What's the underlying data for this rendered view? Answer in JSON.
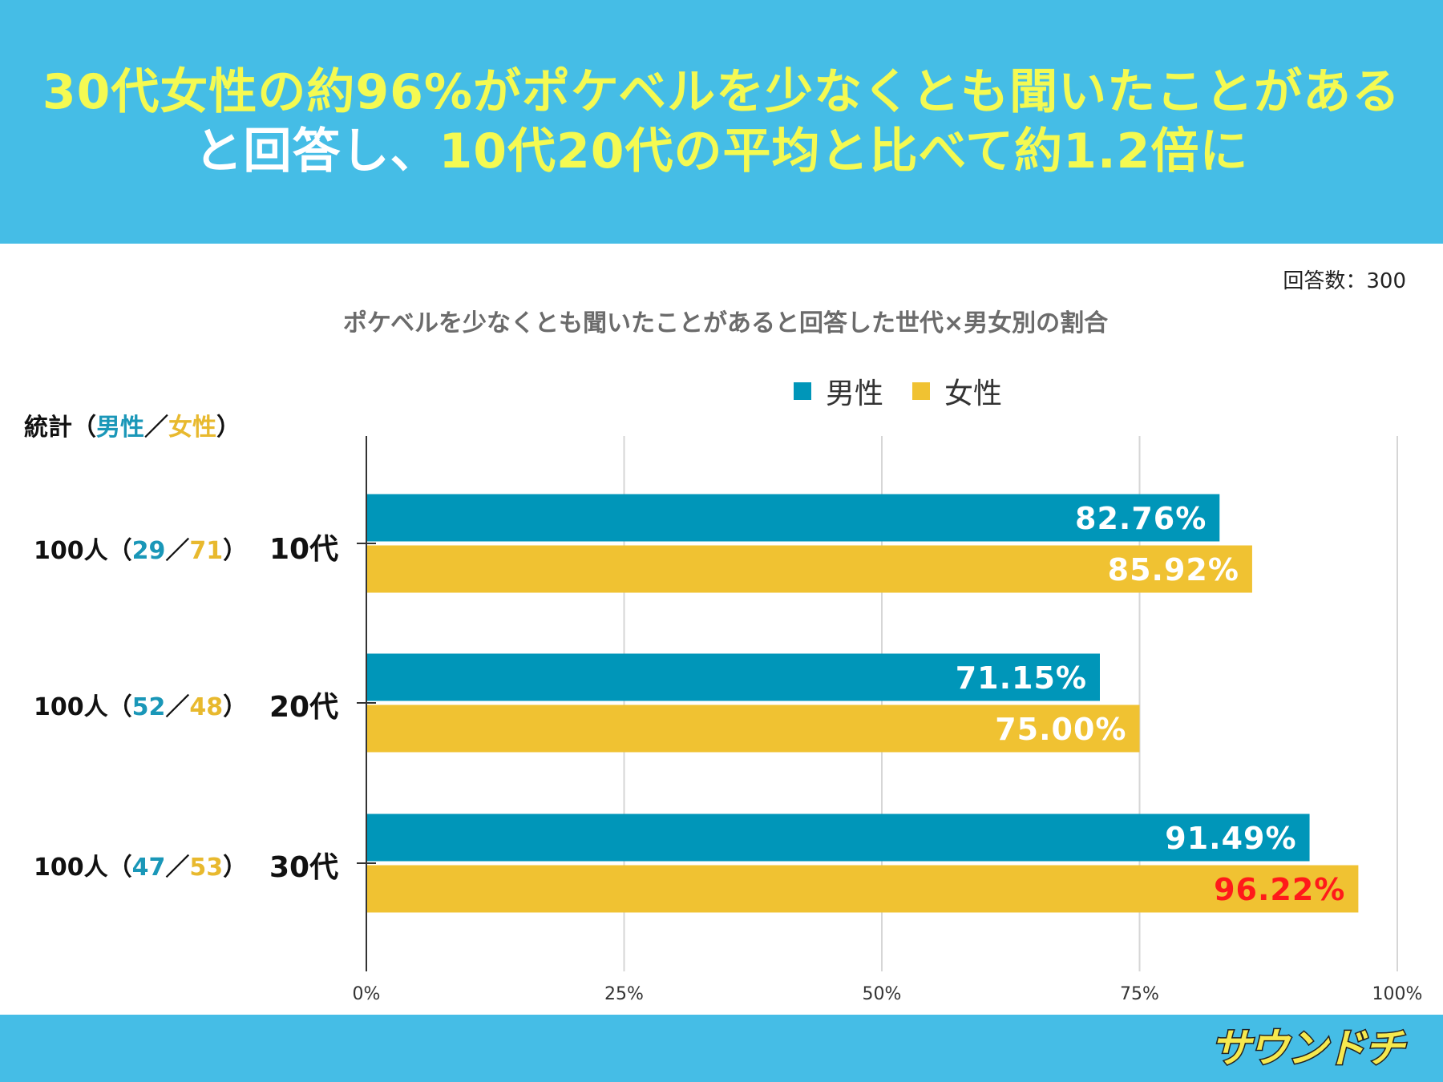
{
  "headline": {
    "line1": "30代女性の約96%がポケベルを少なくとも聞いたことがある",
    "line2_white": "と回答し、",
    "line2_yellow": "10代20代の平均と比べて約1.2倍に"
  },
  "respondents_label": "回答数：300",
  "logo_text": "サウンドチ",
  "stats": {
    "header_prefix": "統計（",
    "header_male": "男性",
    "header_sep": "／",
    "header_female": "女性",
    "header_suffix": "）",
    "rows": [
      {
        "total": "100人（",
        "male": "29",
        "sep": "／",
        "female": "71",
        "close": "）"
      },
      {
        "total": "100人（",
        "male": "52",
        "sep": "／",
        "female": "48",
        "close": "）"
      },
      {
        "total": "100人（",
        "male": "47",
        "sep": "／",
        "female": "53",
        "close": "）"
      }
    ]
  },
  "colors": {
    "header_bg": "#45bde6",
    "male": "#0096b9",
    "female": "#f0c232",
    "highlight": "#ff1a1a",
    "headline_yellow": "#f4fa52"
  },
  "chart_data": {
    "type": "bar",
    "orientation": "horizontal",
    "title": "ポケベルを少なくとも聞いたことがあると回答した世代×男女別の割合",
    "categories": [
      "10代",
      "20代",
      "30代"
    ],
    "series": [
      {
        "name": "男性",
        "values": [
          82.76,
          71.15,
          91.49
        ],
        "labels": [
          "82.76%",
          "71.15%",
          "91.49%"
        ]
      },
      {
        "name": "女性",
        "values": [
          85.92,
          75.0,
          96.22
        ],
        "labels": [
          "85.92%",
          "75.00%",
          "96.22%"
        ]
      }
    ],
    "highlighted_label": "96.22%",
    "xlim": [
      0,
      100
    ],
    "xticks": [
      0,
      25,
      50,
      75,
      100
    ],
    "xtick_labels": [
      "0%",
      "25%",
      "50%",
      "75%",
      "100%"
    ],
    "grid": true,
    "legend": "top"
  }
}
